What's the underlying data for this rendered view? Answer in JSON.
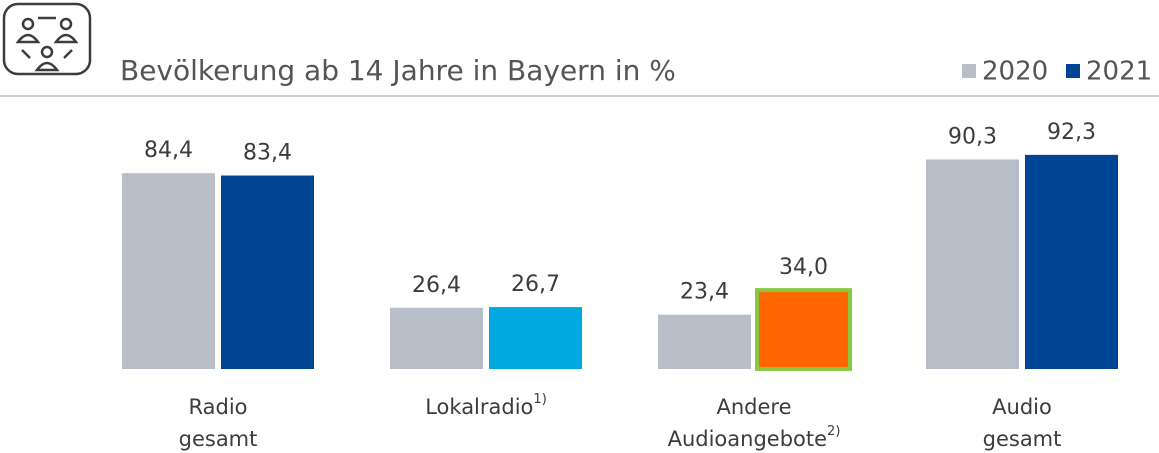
{
  "chart_data": {
    "type": "bar",
    "title": "Bevölkerung ab 14 Jahre in Bayern in %",
    "categories": [
      [
        "Radio",
        "gesamt"
      ],
      [
        "Lokalradio"
      ],
      [
        "Andere",
        "Audioangebote"
      ],
      [
        "Audio",
        "gesamt"
      ]
    ],
    "category_notes": {
      "1": "1)",
      "2": "2)"
    },
    "series": [
      {
        "name": "2020",
        "color": "#b8bec7",
        "values": [
          84.4,
          26.4,
          23.4,
          90.3
        ],
        "value_labels": [
          "84,4",
          "26,4",
          "23,4",
          "90,3"
        ]
      },
      {
        "name": "2021",
        "color": "#004494",
        "colors": [
          "#004494",
          "#00a9e0",
          "#ff6600",
          "#004494"
        ],
        "outline": {
          "index": 2,
          "color": "#8dc63f"
        },
        "values": [
          83.4,
          26.7,
          34.0,
          92.3
        ],
        "value_labels": [
          "83,4",
          "26,7",
          "34,0",
          "92,3"
        ]
      }
    ],
    "ylim": [
      0,
      100
    ],
    "legend": "top-right"
  }
}
